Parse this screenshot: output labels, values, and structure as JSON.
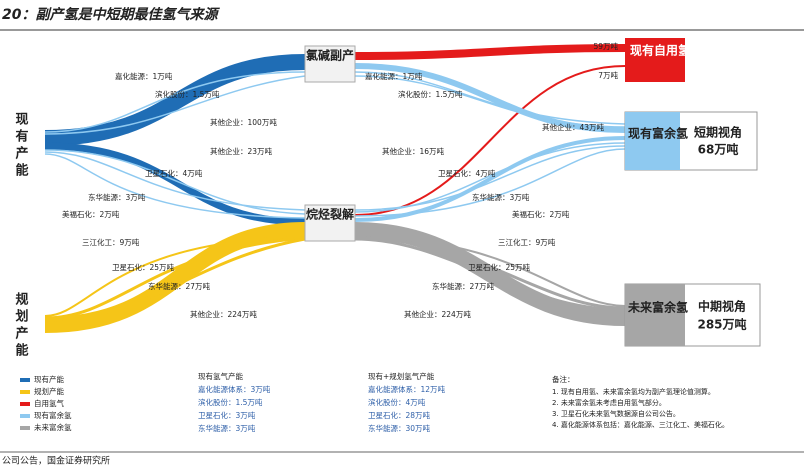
{
  "title": "20：副产氢是中短期最佳氢气来源",
  "left_groups": [
    "现有产能",
    "规划产能"
  ],
  "center_nodes": [
    "氯碱副产",
    "烷烃裂解"
  ],
  "outputs": [
    {
      "label": "现有自用氢"
    },
    {
      "label": "现有富余氢",
      "view": "短期视角",
      "amount": "68万吨"
    },
    {
      "label": "未来富余氢",
      "view": "中期视角",
      "amount": "285万吨"
    }
  ],
  "left_flows": [
    "嘉化能源：1万吨",
    "滨化股份：1.5万吨",
    "其他企业：100万吨",
    "其他企业：23万吨",
    "卫星石化：4万吨",
    "东华能源：3万吨",
    "美福石化：2万吨",
    "三江化工：9万吨",
    "卫星石化：25万吨",
    "东华能源：27万吨",
    "其他企业：224万吨"
  ],
  "right_flows": [
    "59万吨",
    "7万吨",
    "嘉化能源：1万吨",
    "滨化股份：1.5万吨",
    "其他企业：43万吨",
    "其他企业：16万吨",
    "卫星石化：4万吨",
    "东华能源：3万吨",
    "美福石化：2万吨",
    "三江化工：9万吨",
    "卫星石化：25万吨",
    "东华能源：27万吨",
    "其他企业：224万吨"
  ],
  "legend": [
    "现有产能",
    "规划产能",
    "自用氢气",
    "现有富余氢",
    "未来富余氢"
  ],
  "capacity_tables": [
    {
      "title": "现有氢气产能",
      "rows": [
        "嘉化能源体系：3万吨",
        "滨化股份：1.5万吨",
        "卫星石化：3万吨",
        "东华能源：3万吨"
      ]
    },
    {
      "title": "现有+规划氢气产能",
      "rows": [
        "嘉化能源体系：12万吨",
        "滨化股份：4万吨",
        "卫星石化：28万吨",
        "东华能源：30万吨"
      ]
    }
  ],
  "notes": {
    "title": "备注：",
    "items": [
      "1. 现有自用氢、未来富余氢均为副产氢理论值测算。",
      "2. 未来富余氢未考虑自用氢气部分。",
      "3. 卫星石化未来氢气数据源自公司公告。",
      "4. 嘉化能源体系包括：嘉化能源、三江化工、美福石化。"
    ]
  },
  "source": "公司公告，国金证券研究所"
}
